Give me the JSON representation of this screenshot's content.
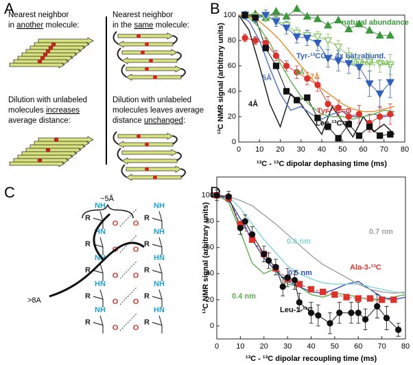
{
  "panel_labels": [
    "A",
    "B",
    "C",
    "D"
  ],
  "panel_a": {
    "left_heading": [
      "Nearest neighbor",
      "in ",
      "another",
      " molecule:"
    ],
    "left_caption": [
      "Dilution with unlabeled",
      "molecules ",
      "increases",
      "average distance:"
    ],
    "right_heading": [
      "Nearest neighbor",
      "in the ",
      "same",
      " molecule:"
    ],
    "right_caption": [
      "Dilution with unlabeled",
      "molecules leaves average",
      "distance ",
      "unchanged",
      ":"
    ]
  },
  "panel_c": {
    "distance_labels": [
      "~5Å",
      ">8A"
    ],
    "left_strand": [
      "NH",
      "R",
      "O",
      "HN",
      "R",
      "O",
      "NH",
      "R",
      "O",
      "HN",
      "R",
      "O",
      "NH",
      "R",
      "O"
    ],
    "right_strand": [
      "NH",
      "R",
      "O",
      "NH",
      "R",
      "O",
      "HN",
      "R",
      "O",
      "NH",
      "R",
      "O",
      "HN",
      "R",
      "O"
    ]
  },
  "chart_data": [
    {
      "type": "line",
      "x_label": "¹³C - ¹³C dipolar dephasing time (ms)",
      "y_label": "¹³C NMR signal (arbitrary units)",
      "xlim": [
        0,
        80
      ],
      "xticks": [
        0,
        10,
        20,
        30,
        40,
        50,
        60,
        70,
        80
      ],
      "ylim": [
        0,
        100
      ],
      "yticks": [
        0,
        20,
        40,
        60,
        80,
        100
      ],
      "series": [
        {
          "name": "natural abundance",
          "color": "#3a9a3a",
          "marker": "triangle-up",
          "filled": true,
          "x": [
            3,
            8,
            13,
            18,
            23,
            28,
            33,
            38,
            43,
            48,
            53,
            58,
            63,
            68,
            73
          ],
          "values": [
            100,
            101,
            98,
            103,
            99,
            105,
            99,
            97,
            92,
            96,
            89,
            93,
            88,
            84,
            84
          ]
        },
        {
          "name": "diluted, calc.",
          "color": "#7dc45a",
          "marker": "triangle-down",
          "filled": false,
          "x": [
            3,
            8,
            13,
            18,
            23,
            28,
            33,
            38,
            43,
            48,
            53,
            58,
            63,
            68,
            73
          ],
          "values": [
            100,
            99,
            98,
            96,
            92,
            86,
            84,
            83,
            80,
            75,
            68,
            63,
            63,
            62,
            61
          ],
          "errors": [
            2,
            2,
            3,
            3,
            3,
            4,
            4,
            4,
            5,
            5,
            6,
            6,
            7,
            7,
            8
          ]
        },
        {
          "name": "Tyr-¹³CO + 4x nat. abund.",
          "color": "#2f5fc0",
          "marker": "triangle-down",
          "filled": true,
          "x": [
            3,
            8,
            13,
            18,
            23,
            28,
            33,
            38,
            43,
            48,
            53,
            58,
            63,
            68,
            73
          ],
          "values": [
            100,
            97,
            100,
            95,
            90,
            83,
            82,
            78,
            66,
            64,
            62,
            59,
            46,
            38,
            47
          ],
          "errors": [
            3,
            3,
            4,
            4,
            5,
            5,
            6,
            6,
            7,
            8,
            8,
            9,
            10,
            11,
            12
          ]
        },
        {
          "name": "Tyr-¹³C=O",
          "color": "#e0302a",
          "marker": "circle",
          "filled": true,
          "x": [
            3,
            8,
            13,
            18,
            23,
            28,
            33,
            38,
            43,
            48,
            53,
            58,
            63,
            68,
            73
          ],
          "values": [
            82,
            80,
            78,
            68,
            60,
            55,
            50,
            45,
            30,
            27,
            20,
            22,
            15,
            20,
            22
          ],
          "errors": [
            3,
            3,
            4,
            4,
            4,
            5,
            5,
            5,
            6,
            6,
            6,
            7,
            7,
            8,
            8
          ]
        },
        {
          "name": "Leu-¹³C=O",
          "color": "#111111",
          "marker": "square",
          "filled": true,
          "x": [
            3,
            8,
            13,
            18,
            23,
            28,
            33,
            38,
            43,
            48,
            53,
            58,
            63,
            68,
            73
          ],
          "values": [
            100,
            98,
            74,
            60,
            40,
            33,
            35,
            19,
            12,
            3,
            14,
            5,
            12,
            5,
            6
          ]
        },
        {
          "name": "4Å",
          "color": "#111111",
          "marker": "none",
          "x": [
            0,
            5,
            10,
            15,
            20,
            25,
            30,
            35,
            40,
            45,
            50,
            55,
            60,
            65,
            70,
            75
          ],
          "values": [
            100,
            88,
            60,
            30,
            12,
            38,
            30,
            18,
            6,
            28,
            16,
            4,
            20,
            8,
            14,
            6
          ]
        },
        {
          "name": "5Å",
          "color": "#4a6fd0",
          "marker": "none",
          "x": [
            0,
            5,
            10,
            15,
            20,
            25,
            30,
            35,
            40,
            45,
            50,
            55,
            60,
            65,
            70,
            75
          ],
          "values": [
            100,
            95,
            80,
            58,
            38,
            25,
            28,
            22,
            18,
            22,
            24,
            20,
            20,
            22,
            20,
            21
          ]
        },
        {
          "name": "6Å",
          "color": "#5ab04a",
          "marker": "none",
          "x": [
            0,
            5,
            10,
            15,
            20,
            25,
            30,
            35,
            40,
            45,
            50,
            55,
            60,
            65,
            70,
            75
          ],
          "values": [
            100,
            98,
            90,
            78,
            62,
            48,
            36,
            28,
            22,
            20,
            20,
            18,
            20,
            22,
            25,
            24
          ]
        },
        {
          "name": "7Å",
          "color": "#f08a2a",
          "marker": "none",
          "x": [
            0,
            5,
            10,
            15,
            20,
            25,
            30,
            35,
            40,
            45,
            50,
            55,
            60,
            65,
            70,
            75
          ],
          "values": [
            100,
            99,
            95,
            88,
            80,
            70,
            60,
            50,
            42,
            36,
            30,
            26,
            24,
            24,
            26,
            28
          ]
        }
      ]
    },
    {
      "type": "line",
      "x_label": "¹³C - ¹³C dipolar recoupling time (ms)",
      "y_label": "¹³C NMR signal (arbitrary units)",
      "xlim": [
        0,
        80
      ],
      "xticks": [
        0,
        10,
        20,
        30,
        40,
        50,
        60,
        70,
        80
      ],
      "ylim": [
        -10,
        114
      ],
      "yticks": [
        0,
        20,
        40,
        60,
        80,
        100
      ],
      "series": [
        {
          "name": "0.4 nm",
          "color": "#5ab04a",
          "marker": "none",
          "x": [
            0,
            5,
            10,
            15,
            20,
            25,
            30,
            35,
            40,
            45,
            50,
            55,
            60,
            65,
            70,
            75,
            80
          ],
          "values": [
            100,
            95,
            72,
            48,
            40,
            44,
            32,
            30,
            24,
            22,
            25,
            24,
            22,
            20,
            20,
            22,
            24
          ]
        },
        {
          "name": "0.5 nm",
          "color": "#2f4fc0",
          "marker": "none",
          "x": [
            0,
            5,
            10,
            15,
            20,
            25,
            30,
            35,
            40,
            45,
            50,
            55,
            60,
            65,
            70,
            75,
            80
          ],
          "values": [
            100,
            97,
            82,
            66,
            52,
            42,
            34,
            30,
            26,
            25,
            28,
            32,
            34,
            28,
            22,
            20,
            22
          ]
        },
        {
          "name": "0.6 nm",
          "color": "#7fd6d6",
          "marker": "none",
          "x": [
            0,
            5,
            10,
            15,
            20,
            25,
            30,
            35,
            40,
            45,
            50,
            55,
            60,
            65,
            70,
            75,
            80
          ],
          "values": [
            100,
            99,
            90,
            78,
            66,
            56,
            46,
            40,
            36,
            33,
            32,
            32,
            32,
            30,
            28,
            26,
            25
          ]
        },
        {
          "name": "0.7 nm",
          "color": "#a0a0a0",
          "marker": "none",
          "x": [
            0,
            5,
            10,
            15,
            20,
            25,
            30,
            35,
            40,
            45,
            50,
            55,
            60,
            65,
            70,
            75,
            80
          ],
          "values": [
            100,
            99,
            96,
            92,
            85,
            78,
            70,
            62,
            54,
            47,
            42,
            37,
            32,
            28,
            26,
            25,
            26
          ]
        },
        {
          "name": "Ala-3-¹³C",
          "color": "#e0302a",
          "marker": "square",
          "filled": true,
          "dashed": true,
          "x": [
            0,
            5,
            10,
            15,
            20,
            25,
            30,
            35,
            40,
            45,
            50,
            55,
            60,
            65,
            70,
            75
          ],
          "values": [
            100,
            98,
            78,
            66,
            55,
            44,
            36,
            32,
            28,
            26,
            24,
            22,
            21,
            21,
            20,
            20
          ]
        },
        {
          "name": "Leu-1-¹³C",
          "color": "#111111",
          "marker": "circle",
          "filled": true,
          "x": [
            0,
            5,
            10,
            12,
            15,
            20,
            22,
            25,
            28,
            30,
            33,
            35,
            40,
            43,
            48,
            52,
            57,
            60,
            63,
            68,
            72,
            77
          ],
          "values": [
            100,
            99,
            75,
            80,
            70,
            55,
            50,
            45,
            30,
            37,
            35,
            18,
            10,
            8,
            2,
            10,
            10,
            10,
            5,
            15,
            6,
            -3
          ],
          "errors": [
            4,
            4,
            5,
            5,
            6,
            6,
            6,
            6,
            7,
            7,
            7,
            7,
            8,
            8,
            8,
            8,
            8,
            8,
            8,
            9,
            9,
            5
          ]
        }
      ]
    }
  ]
}
